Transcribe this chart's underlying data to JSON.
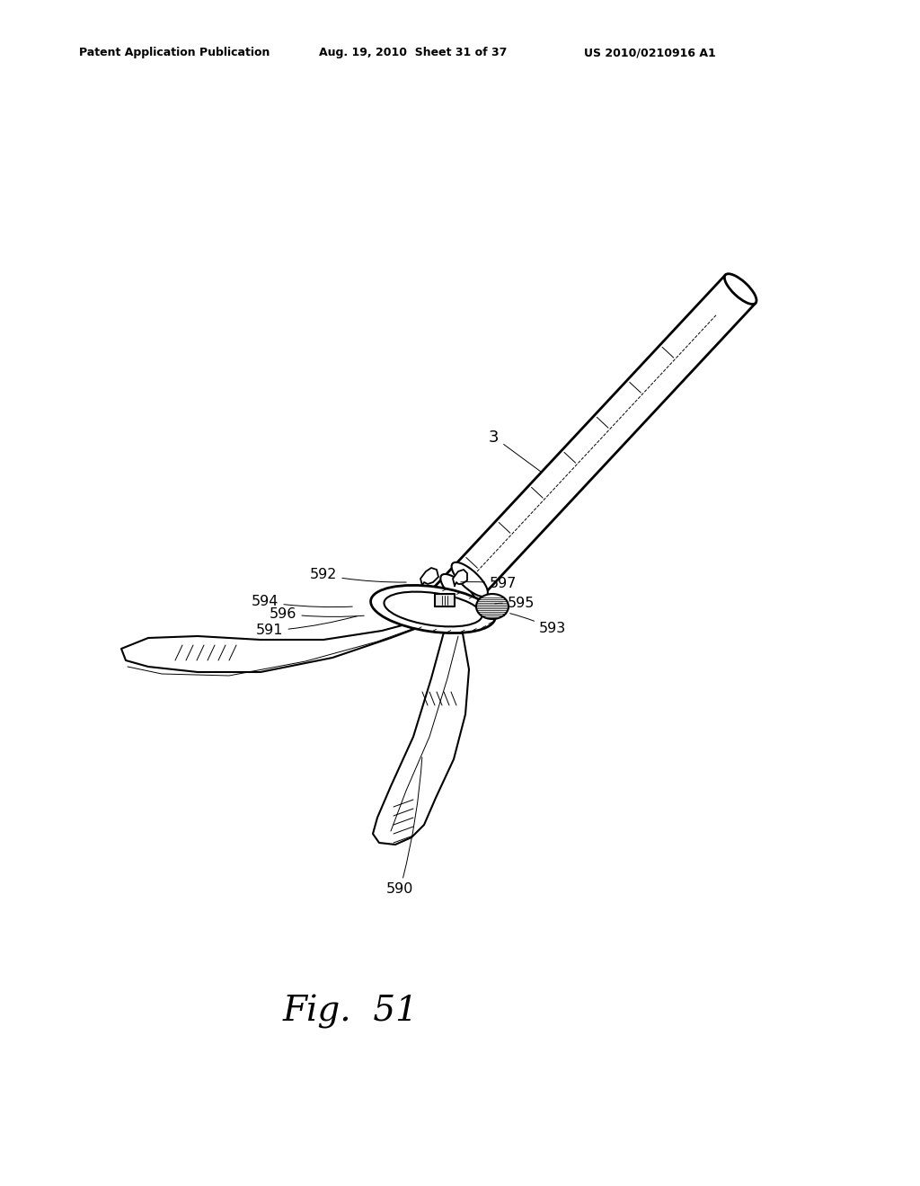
{
  "background_color": "#ffffff",
  "header_left": "Patent Application Publication",
  "header_center": "Aug. 19, 2010  Sheet 31 of 37",
  "header_right": "US 2010/0210916 A1",
  "figure_label": "Fig.  51",
  "label_handle": "3",
  "part_labels": [
    [
      "590",
      430,
      330,
      470,
      480
    ],
    [
      "591",
      285,
      618,
      400,
      635
    ],
    [
      "592",
      345,
      680,
      455,
      672
    ],
    [
      "593",
      600,
      620,
      565,
      638
    ],
    [
      "594",
      280,
      650,
      395,
      645
    ],
    [
      "595",
      565,
      648,
      548,
      648
    ],
    [
      "596",
      300,
      637,
      408,
      635
    ],
    [
      "597",
      545,
      670,
      510,
      672
    ]
  ],
  "line_color": "#000000",
  "line_width": 1.5,
  "thin_line": 0.7
}
